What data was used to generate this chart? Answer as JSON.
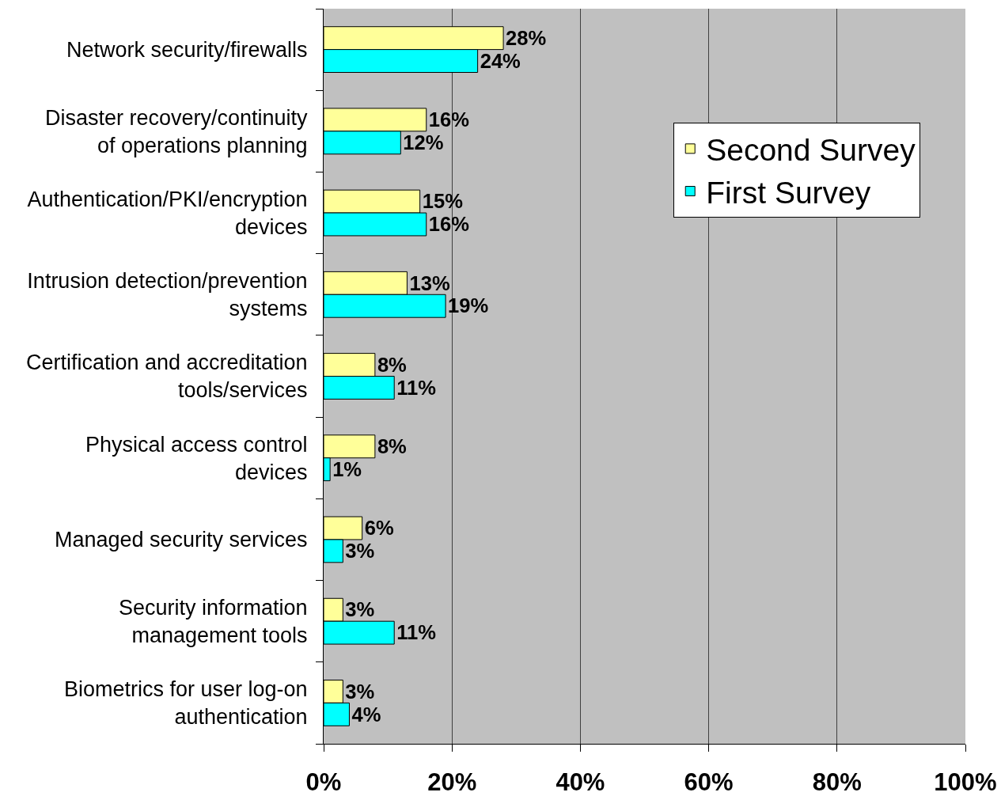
{
  "chart_data": {
    "type": "bar",
    "orientation": "horizontal",
    "categories": [
      "Network security/firewalls",
      "Disaster recovery/continuity\nof operations planning",
      "Authentication/PKI/encryption\ndevices",
      "Intrusion detection/prevention\nsystems",
      "Certification and accreditation\ntools/services",
      "Physical access control\ndevices",
      "Managed security services",
      "Security information\nmanagement tools",
      "Biometrics for user log-on\nauthentication"
    ],
    "series": [
      {
        "name": "Second Survey",
        "color": "#ffff99",
        "values": [
          28,
          16,
          15,
          13,
          8,
          8,
          6,
          3,
          3
        ],
        "value_labels": [
          "28%",
          "16%",
          "15%",
          "13%",
          "8%",
          "8%",
          "6%",
          "3%",
          "3%"
        ]
      },
      {
        "name": "First Survey",
        "color": "#00ffff",
        "values": [
          24,
          12,
          16,
          19,
          11,
          1,
          3,
          11,
          4
        ],
        "value_labels": [
          "24%",
          "12%",
          "16%",
          "19%",
          "11%",
          "1%",
          "3%",
          "11%",
          "4%"
        ]
      }
    ],
    "xlim": [
      0,
      100
    ],
    "xticks": [
      {
        "value": 0,
        "label": "0%"
      },
      {
        "value": 20,
        "label": "20%"
      },
      {
        "value": 40,
        "label": "40%"
      },
      {
        "value": 60,
        "label": "60%"
      },
      {
        "value": 80,
        "label": "80%"
      },
      {
        "value": 100,
        "label": "100%"
      }
    ],
    "grid": "x",
    "legend": "top right"
  }
}
